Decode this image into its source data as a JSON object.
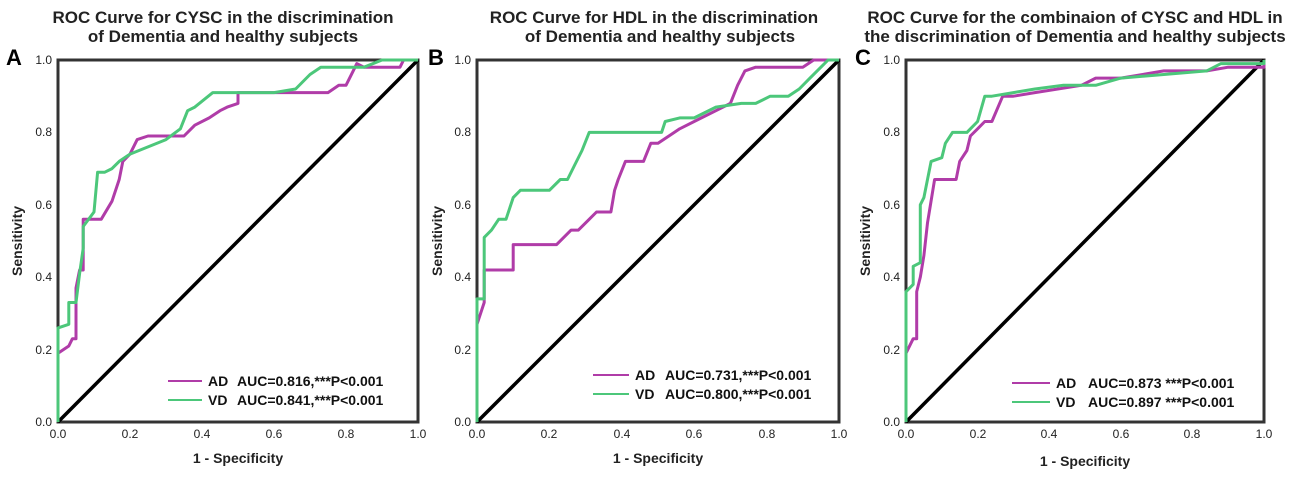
{
  "colors": {
    "ad": "#b03ca8",
    "vd": "#4cc77a",
    "frame": "#333333",
    "diagonal": "#000000"
  },
  "chart_data": [
    {
      "type": "line",
      "panel_letter": "A",
      "title": [
        "ROC Curve for CYSC in the discrimination",
        "of Dementia and healthy subjects"
      ],
      "xlabel": "1 - Specificity",
      "ylabel": "Sensitivity",
      "xlim": [
        0,
        1
      ],
      "ylim": [
        0,
        1
      ],
      "xticks": [
        "0.0",
        "0.2",
        "0.4",
        "0.6",
        "0.8",
        "1.0"
      ],
      "yticks": [
        "0.0",
        "0.2",
        "0.4",
        "0.6",
        "0.8",
        "1.0"
      ],
      "legend_position": "bottom-right",
      "series": [
        {
          "name": "AD",
          "legend": "AUC=0.816,***P<0.001",
          "points": [
            [
              0,
              0
            ],
            [
              0,
              0.19
            ],
            [
              0.03,
              0.21
            ],
            [
              0.04,
              0.23
            ],
            [
              0.05,
              0.23
            ],
            [
              0.05,
              0.37
            ],
            [
              0.06,
              0.42
            ],
            [
              0.07,
              0.42
            ],
            [
              0.07,
              0.56
            ],
            [
              0.1,
              0.56
            ],
            [
              0.12,
              0.56
            ],
            [
              0.15,
              0.61
            ],
            [
              0.17,
              0.67
            ],
            [
              0.18,
              0.72
            ],
            [
              0.2,
              0.74
            ],
            [
              0.22,
              0.78
            ],
            [
              0.25,
              0.79
            ],
            [
              0.3,
              0.79
            ],
            [
              0.35,
              0.79
            ],
            [
              0.38,
              0.82
            ],
            [
              0.42,
              0.84
            ],
            [
              0.45,
              0.86
            ],
            [
              0.47,
              0.87
            ],
            [
              0.5,
              0.88
            ],
            [
              0.5,
              0.91
            ],
            [
              0.6,
              0.91
            ],
            [
              0.68,
              0.91
            ],
            [
              0.75,
              0.91
            ],
            [
              0.78,
              0.93
            ],
            [
              0.8,
              0.93
            ],
            [
              0.82,
              0.97
            ],
            [
              0.83,
              0.99
            ],
            [
              0.85,
              0.98
            ],
            [
              0.95,
              0.98
            ],
            [
              0.96,
              1.0
            ],
            [
              1,
              1
            ]
          ]
        },
        {
          "name": "VD",
          "legend": "AUC=0.841,***P<0.001",
          "points": [
            [
              0,
              0
            ],
            [
              0,
              0.26
            ],
            [
              0.03,
              0.27
            ],
            [
              0.03,
              0.33
            ],
            [
              0.05,
              0.33
            ],
            [
              0.06,
              0.41
            ],
            [
              0.07,
              0.48
            ],
            [
              0.07,
              0.54
            ],
            [
              0.1,
              0.58
            ],
            [
              0.11,
              0.69
            ],
            [
              0.13,
              0.69
            ],
            [
              0.15,
              0.7
            ],
            [
              0.17,
              0.72
            ],
            [
              0.2,
              0.74
            ],
            [
              0.25,
              0.76
            ],
            [
              0.3,
              0.78
            ],
            [
              0.34,
              0.81
            ],
            [
              0.36,
              0.86
            ],
            [
              0.38,
              0.87
            ],
            [
              0.43,
              0.91
            ],
            [
              0.5,
              0.91
            ],
            [
              0.56,
              0.91
            ],
            [
              0.6,
              0.91
            ],
            [
              0.66,
              0.92
            ],
            [
              0.7,
              0.96
            ],
            [
              0.73,
              0.98
            ],
            [
              0.78,
              0.98
            ],
            [
              0.85,
              0.98
            ],
            [
              0.9,
              1.0
            ],
            [
              1,
              1
            ]
          ]
        }
      ]
    },
    {
      "type": "line",
      "panel_letter": "B",
      "title": [
        "ROC Curve for HDL in the discrimination",
        "of Dementia and healthy subjects"
      ],
      "xlabel": "1 - Specificity",
      "ylabel": "Sensitivity",
      "xlim": [
        0,
        1
      ],
      "ylim": [
        0,
        1
      ],
      "xticks": [
        "0.0",
        "0.2",
        "0.4",
        "0.6",
        "0.8",
        "1.0"
      ],
      "yticks": [
        "0.0",
        "0.2",
        "0.4",
        "0.6",
        "0.8",
        "1.0"
      ],
      "legend_position": "bottom-right",
      "series": [
        {
          "name": "AD",
          "legend": "AUC=0.731,***P<0.001",
          "points": [
            [
              0,
              0
            ],
            [
              0,
              0.27
            ],
            [
              0.02,
              0.33
            ],
            [
              0.02,
              0.42
            ],
            [
              0.07,
              0.42
            ],
            [
              0.1,
              0.42
            ],
            [
              0.1,
              0.49
            ],
            [
              0.22,
              0.49
            ],
            [
              0.26,
              0.53
            ],
            [
              0.28,
              0.53
            ],
            [
              0.31,
              0.56
            ],
            [
              0.33,
              0.58
            ],
            [
              0.37,
              0.58
            ],
            [
              0.38,
              0.64
            ],
            [
              0.39,
              0.67
            ],
            [
              0.41,
              0.72
            ],
            [
              0.46,
              0.72
            ],
            [
              0.48,
              0.77
            ],
            [
              0.5,
              0.77
            ],
            [
              0.53,
              0.79
            ],
            [
              0.56,
              0.81
            ],
            [
              0.62,
              0.84
            ],
            [
              0.66,
              0.86
            ],
            [
              0.7,
              0.88
            ],
            [
              0.72,
              0.93
            ],
            [
              0.74,
              0.97
            ],
            [
              0.77,
              0.98
            ],
            [
              0.9,
              0.98
            ],
            [
              0.93,
              1.0
            ],
            [
              1,
              1
            ]
          ]
        },
        {
          "name": "VD",
          "legend": "AUC=0.800,***P<0.001",
          "points": [
            [
              0,
              0
            ],
            [
              0,
              0.34
            ],
            [
              0.02,
              0.34
            ],
            [
              0.02,
              0.51
            ],
            [
              0.04,
              0.53
            ],
            [
              0.06,
              0.56
            ],
            [
              0.08,
              0.56
            ],
            [
              0.1,
              0.62
            ],
            [
              0.12,
              0.64
            ],
            [
              0.2,
              0.64
            ],
            [
              0.23,
              0.67
            ],
            [
              0.25,
              0.67
            ],
            [
              0.27,
              0.71
            ],
            [
              0.29,
              0.75
            ],
            [
              0.31,
              0.8
            ],
            [
              0.34,
              0.8
            ],
            [
              0.4,
              0.8
            ],
            [
              0.51,
              0.8
            ],
            [
              0.52,
              0.83
            ],
            [
              0.56,
              0.84
            ],
            [
              0.6,
              0.84
            ],
            [
              0.66,
              0.87
            ],
            [
              0.73,
              0.88
            ],
            [
              0.77,
              0.88
            ],
            [
              0.81,
              0.9
            ],
            [
              0.86,
              0.9
            ],
            [
              0.89,
              0.92
            ],
            [
              0.92,
              0.95
            ],
            [
              0.95,
              0.98
            ],
            [
              0.97,
              1.0
            ],
            [
              1,
              1
            ]
          ]
        }
      ]
    },
    {
      "type": "line",
      "panel_letter": "C",
      "title": [
        "ROC Curve for the combinaion of CYSC and HDL in",
        "the discrimination of Dementia and healthy subjects"
      ],
      "xlabel": "1 - Specificity",
      "ylabel": "Sensitivity",
      "xlim": [
        0,
        1
      ],
      "ylim": [
        0,
        1
      ],
      "xticks": [
        "0.0",
        "0.2",
        "0.4",
        "0.6",
        "0.8",
        "1.0"
      ],
      "yticks": [
        "0.0",
        "0.2",
        "0.4",
        "0.6",
        "0.8",
        "1.0"
      ],
      "legend_position": "bottom-right",
      "series": [
        {
          "name": "AD",
          "legend": "AUC=0.873 ***P<0.001",
          "points": [
            [
              0,
              0
            ],
            [
              0,
              0.19
            ],
            [
              0.02,
              0.23
            ],
            [
              0.03,
              0.23
            ],
            [
              0.03,
              0.36
            ],
            [
              0.04,
              0.4
            ],
            [
              0.05,
              0.46
            ],
            [
              0.06,
              0.55
            ],
            [
              0.08,
              0.67
            ],
            [
              0.14,
              0.67
            ],
            [
              0.15,
              0.72
            ],
            [
              0.17,
              0.75
            ],
            [
              0.18,
              0.79
            ],
            [
              0.2,
              0.81
            ],
            [
              0.22,
              0.83
            ],
            [
              0.24,
              0.83
            ],
            [
              0.27,
              0.9
            ],
            [
              0.3,
              0.9
            ],
            [
              0.36,
              0.91
            ],
            [
              0.49,
              0.93
            ],
            [
              0.53,
              0.95
            ],
            [
              0.6,
              0.95
            ],
            [
              0.72,
              0.97
            ],
            [
              0.84,
              0.97
            ],
            [
              0.9,
              0.98
            ],
            [
              1,
              0.98
            ],
            [
              1,
              1
            ]
          ]
        },
        {
          "name": "VD",
          "legend": "AUC=0.897 ***P<0.001",
          "points": [
            [
              0,
              0
            ],
            [
              0,
              0.36
            ],
            [
              0.02,
              0.38
            ],
            [
              0.02,
              0.43
            ],
            [
              0.04,
              0.44
            ],
            [
              0.04,
              0.6
            ],
            [
              0.05,
              0.62
            ],
            [
              0.07,
              0.72
            ],
            [
              0.1,
              0.73
            ],
            [
              0.11,
              0.77
            ],
            [
              0.13,
              0.8
            ],
            [
              0.17,
              0.8
            ],
            [
              0.2,
              0.83
            ],
            [
              0.22,
              0.9
            ],
            [
              0.24,
              0.9
            ],
            [
              0.3,
              0.91
            ],
            [
              0.36,
              0.92
            ],
            [
              0.44,
              0.93
            ],
            [
              0.53,
              0.93
            ],
            [
              0.6,
              0.95
            ],
            [
              0.72,
              0.96
            ],
            [
              0.84,
              0.97
            ],
            [
              0.88,
              0.99
            ],
            [
              1,
              0.99
            ],
            [
              1,
              1
            ]
          ]
        }
      ]
    }
  ]
}
